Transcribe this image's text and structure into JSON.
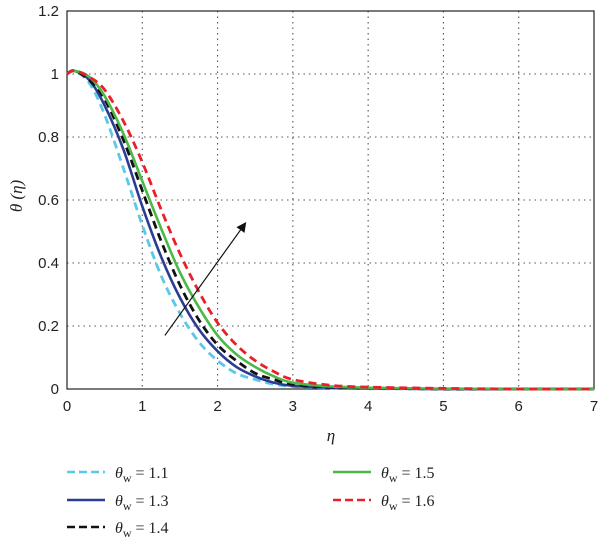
{
  "chart_data": {
    "type": "line",
    "xlabel": "η",
    "ylabel": "θ (η)",
    "xlim": [
      0,
      7
    ],
    "ylim": [
      0,
      1.2
    ],
    "xticks": [
      "0",
      "1",
      "2",
      "3",
      "4",
      "5",
      "6",
      "7"
    ],
    "yticks": [
      "0",
      "0.2",
      "0.4",
      "0.6",
      "0.8",
      "1",
      "1.2"
    ],
    "grid": true,
    "legend_position": "bottom",
    "series": [
      {
        "name": "θw = 1.1",
        "color": "#5bc8e8",
        "dash": "dashed",
        "x": [
          0,
          0.1,
          0.3,
          0.5,
          0.75,
          1.0,
          1.25,
          1.5,
          1.75,
          2.0,
          2.25,
          2.5,
          2.75,
          3.0,
          3.5,
          4.0,
          5.0,
          6.0,
          7.0
        ],
        "y": [
          1.0,
          1.01,
          0.97,
          0.87,
          0.7,
          0.52,
          0.36,
          0.24,
          0.15,
          0.09,
          0.05,
          0.03,
          0.015,
          0.008,
          0.003,
          0.001,
          0,
          0,
          0
        ]
      },
      {
        "name": "θw = 1.3",
        "color": "#2b3d93",
        "dash": "solid",
        "x": [
          0,
          0.1,
          0.3,
          0.5,
          0.75,
          1.0,
          1.25,
          1.5,
          1.75,
          2.0,
          2.25,
          2.5,
          2.75,
          3.0,
          3.5,
          4.0,
          5.0,
          6.0,
          7.0
        ],
        "y": [
          1.0,
          1.01,
          0.98,
          0.9,
          0.76,
          0.58,
          0.42,
          0.29,
          0.19,
          0.12,
          0.07,
          0.04,
          0.02,
          0.01,
          0.004,
          0.002,
          0,
          0,
          0
        ]
      },
      {
        "name": "θw = 1.4",
        "color": "#111111",
        "dash": "dashed",
        "x": [
          0,
          0.1,
          0.3,
          0.5,
          0.75,
          1.0,
          1.25,
          1.5,
          1.75,
          2.0,
          2.25,
          2.5,
          2.75,
          3.0,
          3.5,
          4.0,
          5.0,
          6.0,
          7.0
        ],
        "y": [
          1.0,
          1.01,
          0.98,
          0.92,
          0.79,
          0.63,
          0.47,
          0.33,
          0.22,
          0.14,
          0.09,
          0.05,
          0.03,
          0.015,
          0.006,
          0.003,
          0,
          0,
          0
        ]
      },
      {
        "name": "θw = 1.5",
        "color": "#4cb848",
        "dash": "solid",
        "x": [
          0,
          0.1,
          0.3,
          0.5,
          0.75,
          1.0,
          1.25,
          1.5,
          1.75,
          2.0,
          2.25,
          2.5,
          2.75,
          3.0,
          3.5,
          4.0,
          5.0,
          6.0,
          7.0
        ],
        "y": [
          1.0,
          1.01,
          0.99,
          0.93,
          0.81,
          0.66,
          0.51,
          0.37,
          0.26,
          0.17,
          0.11,
          0.07,
          0.04,
          0.02,
          0.008,
          0.004,
          0.001,
          0,
          0
        ]
      },
      {
        "name": "θw = 1.6",
        "color": "#e8202a",
        "dash": "dashed",
        "x": [
          0,
          0.1,
          0.3,
          0.5,
          0.75,
          1.0,
          1.25,
          1.5,
          1.75,
          2.0,
          2.25,
          2.5,
          2.75,
          3.0,
          3.5,
          4.0,
          5.0,
          6.0,
          7.0
        ],
        "y": [
          1.0,
          1.01,
          0.99,
          0.95,
          0.85,
          0.72,
          0.57,
          0.43,
          0.31,
          0.21,
          0.14,
          0.09,
          0.055,
          0.03,
          0.012,
          0.006,
          0.002,
          0,
          0
        ]
      }
    ],
    "annotation": {
      "type": "arrow",
      "from": [
        1.3,
        0.17
      ],
      "to": [
        2.35,
        0.52
      ],
      "color": "#111111"
    }
  }
}
